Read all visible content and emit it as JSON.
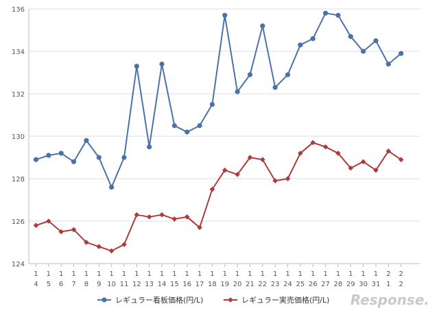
{
  "chart_data": {
    "type": "line",
    "x": [
      [
        "1",
        "4"
      ],
      [
        "1",
        "5"
      ],
      [
        "1",
        "6"
      ],
      [
        "1",
        "7"
      ],
      [
        "1",
        "8"
      ],
      [
        "1",
        "9"
      ],
      [
        "1",
        "10"
      ],
      [
        "1",
        "11"
      ],
      [
        "1",
        "12"
      ],
      [
        "1",
        "13"
      ],
      [
        "1",
        "14"
      ],
      [
        "1",
        "15"
      ],
      [
        "1",
        "16"
      ],
      [
        "1",
        "17"
      ],
      [
        "1",
        "18"
      ],
      [
        "1",
        "19"
      ],
      [
        "1",
        "20"
      ],
      [
        "1",
        "21"
      ],
      [
        "1",
        "22"
      ],
      [
        "1",
        "23"
      ],
      [
        "1",
        "24"
      ],
      [
        "1",
        "25"
      ],
      [
        "1",
        "26"
      ],
      [
        "1",
        "27"
      ],
      [
        "1",
        "28"
      ],
      [
        "1",
        "29"
      ],
      [
        "1",
        "30"
      ],
      [
        "1",
        "31"
      ],
      [
        "2",
        "1"
      ],
      [
        "2",
        "2"
      ]
    ],
    "series": [
      {
        "name": "レギュラー看板価格(円/L)",
        "color": "#4a72a8",
        "marker": "circle",
        "values": [
          128.9,
          129.1,
          129.2,
          128.8,
          129.8,
          129.0,
          127.6,
          129.0,
          133.3,
          129.5,
          133.4,
          130.5,
          130.2,
          130.5,
          131.5,
          135.7,
          132.1,
          132.9,
          135.2,
          132.3,
          132.9,
          134.3,
          134.6,
          135.8,
          135.7,
          134.7,
          134.0,
          134.5,
          133.4,
          133.9
        ]
      },
      {
        "name": "レギュラー実売価格(円/L)",
        "color": "#b03a3a",
        "marker": "diamond",
        "values": [
          125.8,
          126.0,
          125.5,
          125.6,
          125.0,
          124.8,
          124.6,
          124.9,
          126.3,
          126.2,
          126.3,
          126.1,
          126.2,
          125.7,
          127.5,
          128.4,
          128.2,
          129.0,
          128.9,
          127.9,
          128.0,
          129.2,
          129.7,
          129.5,
          129.2,
          128.5,
          128.8,
          128.4,
          129.3,
          128.9
        ]
      }
    ],
    "ylim": [
      124,
      136
    ],
    "yticks": [
      "124",
      "126",
      "128",
      "130",
      "132",
      "134",
      "136"
    ],
    "grid": true,
    "legend": "bottom"
  },
  "watermark": "Response."
}
